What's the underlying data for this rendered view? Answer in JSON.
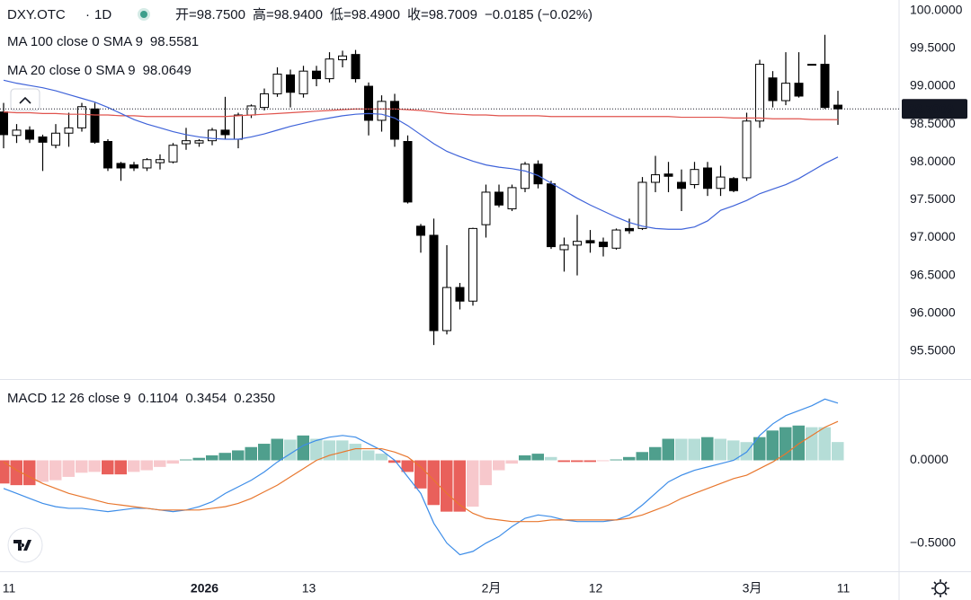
{
  "chart_data": [
    {
      "type": "candlestick",
      "symbol": "DXY.OTC",
      "interval": "1D",
      "ohlc_labels": [
        "开=98.7500",
        "高=98.9400",
        "低=98.4900",
        "收=98.7009"
      ],
      "change": "−0.0185 (−0.02%)",
      "categories": [
        "11",
        null,
        null,
        null,
        null,
        null,
        null,
        null,
        null,
        null,
        null,
        null,
        null,
        null,
        null,
        "2026",
        null,
        null,
        null,
        null,
        null,
        null,
        null,
        "13",
        null,
        null,
        null,
        null,
        null,
        null,
        null,
        null,
        null,
        null,
        null,
        null,
        null,
        "2月",
        null,
        null,
        null,
        null,
        null,
        null,
        null,
        "12",
        null,
        null,
        null,
        null,
        null,
        null,
        null,
        null,
        null,
        null,
        null,
        "3月",
        null,
        null,
        null,
        null,
        null,
        null,
        "11"
      ],
      "open": [
        98.66,
        98.35,
        98.42,
        98.33,
        98.22,
        98.38,
        98.45,
        98.7,
        98.27,
        97.98,
        97.96,
        97.92,
        97.99,
        98.0,
        98.24,
        98.25,
        98.28,
        98.42,
        98.3,
        98.62,
        98.72,
        98.9,
        99.15,
        98.9,
        99.2,
        99.1,
        99.35,
        99.42,
        99.0,
        98.55,
        98.8,
        98.27,
        97.15,
        97.03,
        95.77,
        96.34,
        96.16,
        97.17,
        97.6,
        97.38,
        97.65,
        97.97,
        97.71,
        96.84,
        96.9,
        96.96,
        96.94,
        96.86,
        97.12,
        97.12,
        97.73,
        97.84,
        97.73,
        97.7,
        97.92,
        97.65,
        97.78,
        97.79,
        98.54,
        99.11,
        98.81,
        99.04,
        99.29,
        99.29,
        98.75
      ],
      "high": [
        98.78,
        98.5,
        98.47,
        98.36,
        98.5,
        98.65,
        98.78,
        98.78,
        98.3,
        98.0,
        98.0,
        98.05,
        98.1,
        98.25,
        98.45,
        98.3,
        98.45,
        98.86,
        98.65,
        98.76,
        98.97,
        99.25,
        99.22,
        99.27,
        99.27,
        99.45,
        99.47,
        99.48,
        99.05,
        98.88,
        98.9,
        98.35,
        97.18,
        97.25,
        96.9,
        96.4,
        97.13,
        97.7,
        97.7,
        97.7,
        98.0,
        98.02,
        97.75,
        97.0,
        97.3,
        97.1,
        97.0,
        97.12,
        97.25,
        97.8,
        98.08,
        98.0,
        97.9,
        98.0,
        98.0,
        97.95,
        97.8,
        98.65,
        99.35,
        99.2,
        99.45,
        99.45,
        99.29,
        99.68,
        98.94
      ],
      "low": [
        98.18,
        98.25,
        98.25,
        97.88,
        98.18,
        98.2,
        98.4,
        98.24,
        97.88,
        97.75,
        97.88,
        97.88,
        97.9,
        97.98,
        98.16,
        98.2,
        98.22,
        98.3,
        98.18,
        98.58,
        98.68,
        98.86,
        98.72,
        98.85,
        99.0,
        99.05,
        99.25,
        99.05,
        98.35,
        98.4,
        98.2,
        97.45,
        96.8,
        95.58,
        95.72,
        96.05,
        96.1,
        97.0,
        97.4,
        97.35,
        97.6,
        97.65,
        96.85,
        96.55,
        96.5,
        96.8,
        96.75,
        96.84,
        97.05,
        97.1,
        97.6,
        97.6,
        97.35,
        97.65,
        97.55,
        97.55,
        97.6,
        97.75,
        98.45,
        98.72,
        98.75,
        98.85,
        99.28,
        98.7,
        98.49
      ],
      "close": [
        98.36,
        98.42,
        98.3,
        98.26,
        98.38,
        98.45,
        98.73,
        98.26,
        97.92,
        97.92,
        97.92,
        98.03,
        98.03,
        98.22,
        98.28,
        98.28,
        98.42,
        98.36,
        98.62,
        98.74,
        98.9,
        99.16,
        98.92,
        99.2,
        99.1,
        99.36,
        99.4,
        99.1,
        98.55,
        98.8,
        98.3,
        97.47,
        97.03,
        95.77,
        96.34,
        96.16,
        97.12,
        97.6,
        97.43,
        97.66,
        97.97,
        97.71,
        96.88,
        96.9,
        96.95,
        96.93,
        96.88,
        97.1,
        97.09,
        97.73,
        97.83,
        97.81,
        97.65,
        97.9,
        97.65,
        97.8,
        97.62,
        98.54,
        99.29,
        98.81,
        99.04,
        98.87,
        99.28,
        98.72,
        98.7009
      ],
      "up_color": "#ffffff",
      "down_color": "#000000",
      "wick_color": "#000000",
      "last_price_label": "98.7009",
      "series": [
        {
          "name": "MA 100 close 0 SMA 9",
          "color": "#e0534d",
          "legend_value": "98.5581",
          "values": [
            98.66,
            98.65,
            98.65,
            98.64,
            98.64,
            98.63,
            98.63,
            98.62,
            98.62,
            98.61,
            98.61,
            98.6,
            98.6,
            98.6,
            98.6,
            98.6,
            98.6,
            98.6,
            98.61,
            98.62,
            98.63,
            98.64,
            98.65,
            98.66,
            98.67,
            98.68,
            98.69,
            98.7,
            98.7,
            98.7,
            98.7,
            98.69,
            98.68,
            98.66,
            98.64,
            98.63,
            98.62,
            98.62,
            98.61,
            98.61,
            98.61,
            98.61,
            98.6,
            98.6,
            98.6,
            98.6,
            98.6,
            98.6,
            98.6,
            98.6,
            98.6,
            98.6,
            98.59,
            98.59,
            98.59,
            98.59,
            98.58,
            98.58,
            98.58,
            98.57,
            98.57,
            98.57,
            98.56,
            98.56,
            98.5581
          ]
        },
        {
          "name": "MA 20 close 0 SMA 9",
          "color": "#3f63d9",
          "legend_value": "98.0649",
          "values": [
            99.08,
            99.04,
            99.01,
            98.98,
            98.94,
            98.89,
            98.84,
            98.79,
            98.72,
            98.64,
            98.56,
            98.5,
            98.45,
            98.4,
            98.36,
            98.33,
            98.31,
            98.3,
            98.3,
            98.33,
            98.37,
            98.42,
            98.47,
            98.51,
            98.55,
            98.58,
            98.61,
            98.63,
            98.64,
            98.63,
            98.58,
            98.48,
            98.36,
            98.24,
            98.14,
            98.07,
            98.01,
            97.96,
            97.93,
            97.91,
            97.88,
            97.82,
            97.72,
            97.62,
            97.52,
            97.43,
            97.35,
            97.27,
            97.2,
            97.15,
            97.12,
            97.11,
            97.11,
            97.14,
            97.22,
            97.36,
            97.42,
            97.49,
            97.58,
            97.64,
            97.7,
            97.78,
            97.88,
            97.98,
            98.0649
          ]
        }
      ],
      "ylim": [
        95.13,
        100.14
      ],
      "yticks": [
        {
          "value": 100,
          "label": "100.0000"
        },
        {
          "value": 99.5,
          "label": "99.5000"
        },
        {
          "value": 99,
          "label": "99.0000"
        },
        {
          "value": 98.5,
          "label": "98.5000"
        },
        {
          "value": 98,
          "label": "98.0000"
        },
        {
          "value": 97.5,
          "label": "97.5000"
        },
        {
          "value": 97,
          "label": "97.0000"
        },
        {
          "value": 96.5,
          "label": "96.5000"
        },
        {
          "value": 96,
          "label": "96.0000"
        },
        {
          "value": 95.5,
          "label": "95.5000"
        }
      ]
    },
    {
      "type": "macd",
      "name": "MACD 12 26 close 9",
      "histogram": {
        "legend_value": "0.1104",
        "colors": {
          "up_rising": "#4f9f8d",
          "up_falling": "#b5ddd7",
          "down_falling": "#e9605b",
          "down_rising": "#f7c8cc"
        },
        "values": [
          -0.14,
          -0.15,
          -0.15,
          -0.13,
          -0.12,
          -0.1,
          -0.075,
          -0.07,
          -0.085,
          -0.085,
          -0.07,
          -0.06,
          -0.04,
          -0.02,
          0.005,
          0.015,
          0.03,
          0.045,
          0.06,
          0.08,
          0.1,
          0.13,
          0.125,
          0.15,
          0.13,
          0.12,
          0.12,
          0.1,
          0.06,
          0.04,
          -0.015,
          -0.07,
          -0.17,
          -0.27,
          -0.31,
          -0.31,
          -0.28,
          -0.15,
          -0.06,
          -0.02,
          0.03,
          0.04,
          0.02,
          -0.01,
          -0.01,
          -0.01,
          -0.005,
          0.005,
          0.02,
          0.05,
          0.08,
          0.13,
          0.13,
          0.13,
          0.14,
          0.13,
          0.12,
          0.11,
          0.14,
          0.18,
          0.2,
          0.21,
          0.2,
          0.2,
          0.1104
        ]
      },
      "series": [
        {
          "name": "MACD",
          "color": "#3d8de8",
          "legend_value": "0.3454",
          "values": [
            -0.17,
            -0.2,
            -0.23,
            -0.26,
            -0.28,
            -0.29,
            -0.29,
            -0.3,
            -0.31,
            -0.3,
            -0.29,
            -0.29,
            -0.3,
            -0.31,
            -0.3,
            -0.28,
            -0.25,
            -0.2,
            -0.16,
            -0.12,
            -0.07,
            -0.01,
            0.04,
            0.09,
            0.12,
            0.14,
            0.15,
            0.14,
            0.1,
            0.06,
            0.0,
            -0.1,
            -0.2,
            -0.38,
            -0.5,
            -0.57,
            -0.55,
            -0.5,
            -0.46,
            -0.4,
            -0.35,
            -0.33,
            -0.34,
            -0.36,
            -0.37,
            -0.37,
            -0.37,
            -0.36,
            -0.33,
            -0.27,
            -0.2,
            -0.13,
            -0.09,
            -0.06,
            -0.04,
            -0.02,
            0.0,
            0.05,
            0.15,
            0.22,
            0.27,
            0.3,
            0.33,
            0.37,
            0.3454
          ]
        },
        {
          "name": "Signal",
          "color": "#e8772e",
          "legend_value": "0.2350",
          "values": [
            -0.01,
            -0.06,
            -0.1,
            -0.14,
            -0.17,
            -0.2,
            -0.22,
            -0.24,
            -0.26,
            -0.27,
            -0.28,
            -0.29,
            -0.3,
            -0.3,
            -0.3,
            -0.3,
            -0.29,
            -0.28,
            -0.26,
            -0.23,
            -0.19,
            -0.15,
            -0.1,
            -0.05,
            0.0,
            0.03,
            0.05,
            0.07,
            0.07,
            0.07,
            0.05,
            0.02,
            -0.04,
            -0.12,
            -0.2,
            -0.27,
            -0.32,
            -0.35,
            -0.36,
            -0.37,
            -0.37,
            -0.37,
            -0.36,
            -0.36,
            -0.36,
            -0.36,
            -0.36,
            -0.36,
            -0.35,
            -0.33,
            -0.3,
            -0.27,
            -0.23,
            -0.2,
            -0.17,
            -0.14,
            -0.11,
            -0.09,
            -0.05,
            -0.01,
            0.04,
            0.1,
            0.15,
            0.2,
            0.235
          ]
        }
      ],
      "ylim": [
        -0.67,
        0.48
      ],
      "yticks": [
        {
          "value": 0,
          "label": "0.0000"
        },
        {
          "value": -0.5,
          "label": "−0.5000"
        }
      ]
    }
  ]
}
